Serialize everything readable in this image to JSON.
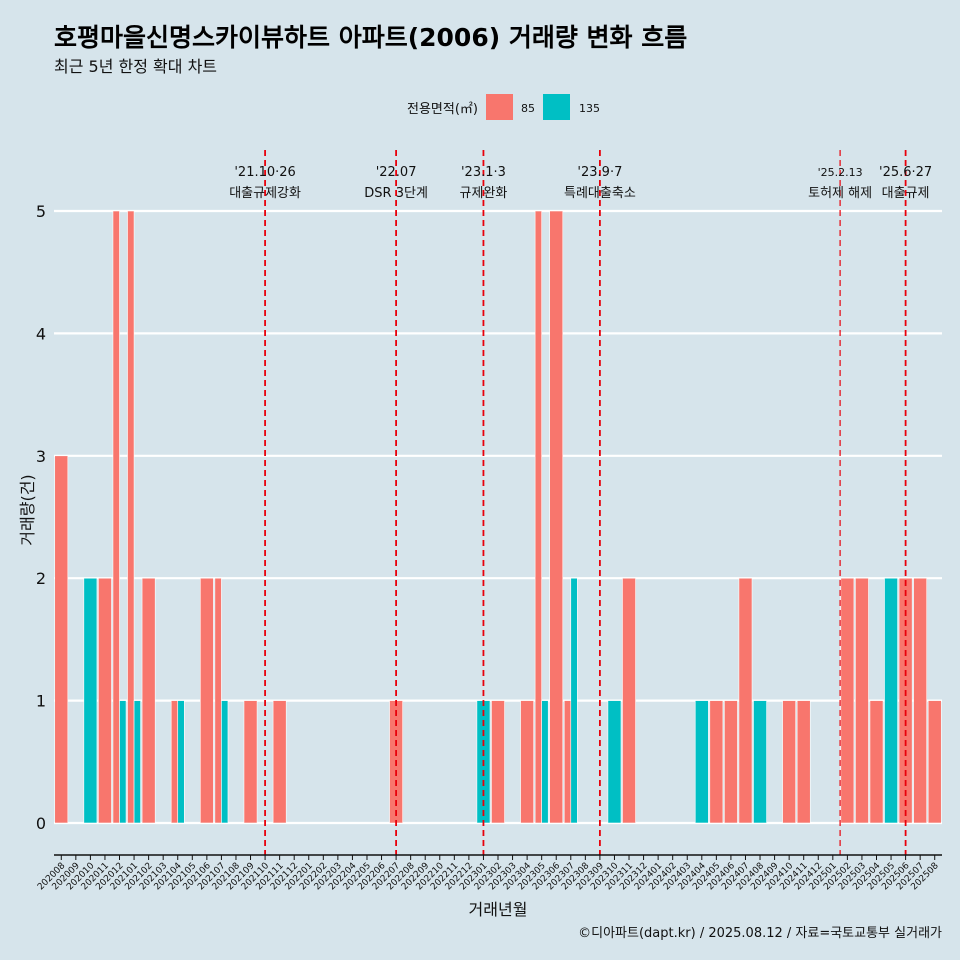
{
  "title": "호평마을신명스카이뷰하트 아파트(2006) 거래량 변화 흐름",
  "subtitle": "최근 5년 한정 확대 차트",
  "caption": "©디아파트(dapt.kr) / 2025.08.12 / 자료=국토교통부 실거래가",
  "colors": {
    "background": "#d6e4eb",
    "area85": "#f8766d",
    "area135": "#00bfc4",
    "event_line": "#e8000b",
    "grid": "#ffffff"
  },
  "chart_data": {
    "type": "bar",
    "title": "호평마을신명스카이뷰하트 아파트(2006) 거래량 변화 흐름",
    "subtitle": "최근 5년 한정 확대 차트",
    "xlabel": "거래년월",
    "ylabel": "거래량(건)",
    "ylim": [
      0,
      5
    ],
    "yticks": [
      0,
      1,
      2,
      3,
      4,
      5
    ],
    "grid": true,
    "legend": {
      "title": "전용면적(㎡)",
      "position": "top",
      "entries": [
        "85",
        "135"
      ]
    },
    "categories": [
      "202008",
      "202009",
      "202010",
      "202011",
      "202012",
      "202101",
      "202102",
      "202103",
      "202104",
      "202105",
      "202106",
      "202107",
      "202108",
      "202109",
      "202110",
      "202111",
      "202112",
      "202201",
      "202202",
      "202203",
      "202204",
      "202205",
      "202206",
      "202207",
      "202208",
      "202209",
      "202210",
      "202211",
      "202212",
      "202301",
      "202302",
      "202303",
      "202304",
      "202305",
      "202306",
      "202307",
      "202308",
      "202309",
      "202310",
      "202311",
      "202312",
      "202401",
      "202402",
      "202403",
      "202404",
      "202405",
      "202406",
      "202407",
      "202408",
      "202409",
      "202410",
      "202411",
      "202412",
      "202501",
      "202502",
      "202503",
      "202504",
      "202505",
      "202506",
      "202507",
      "202508"
    ],
    "series": [
      {
        "name": "85",
        "values": [
          3,
          0,
          0,
          2,
          5,
          5,
          2,
          0,
          1,
          0,
          2,
          2,
          0,
          1,
          0,
          1,
          0,
          0,
          0,
          0,
          0,
          0,
          0,
          1,
          0,
          0,
          0,
          0,
          0,
          0,
          1,
          0,
          1,
          5,
          5,
          1,
          0,
          0,
          0,
          2,
          0,
          0,
          0,
          0,
          0,
          1,
          1,
          2,
          0,
          0,
          1,
          1,
          0,
          0,
          2,
          2,
          1,
          0,
          2,
          2,
          1
        ]
      },
      {
        "name": "135",
        "values": [
          0,
          0,
          2,
          0,
          1,
          1,
          0,
          0,
          1,
          0,
          0,
          1,
          0,
          0,
          0,
          0,
          0,
          0,
          0,
          0,
          0,
          0,
          0,
          0,
          0,
          0,
          0,
          0,
          0,
          1,
          0,
          0,
          0,
          1,
          0,
          2,
          0,
          0,
          1,
          0,
          0,
          0,
          0,
          0,
          1,
          0,
          0,
          0,
          1,
          0,
          0,
          0,
          0,
          0,
          0,
          0,
          0,
          2,
          0,
          0,
          0
        ]
      }
    ],
    "events": [
      {
        "date": "'21.10·26",
        "label": "대출규제강화",
        "x_month": "202110",
        "pos": 0.5
      },
      {
        "date": "'22.07",
        "label": "DSR 3단계",
        "x_month": "202207",
        "pos": 0.5
      },
      {
        "date": "'23.1·3",
        "label": "규제완화",
        "x_month": "202301",
        "pos": 0.5
      },
      {
        "date": "'23.9·7",
        "label": "특례대출축소",
        "x_month": "202309",
        "pos": 0.5
      },
      {
        "date": "'25.2.13",
        "label": "토허제 해제",
        "x_month": "202502",
        "pos": 0.0
      },
      {
        "date": "'25.6·27",
        "label": "대출규제",
        "x_month": "202506",
        "pos": 0.5
      }
    ]
  }
}
